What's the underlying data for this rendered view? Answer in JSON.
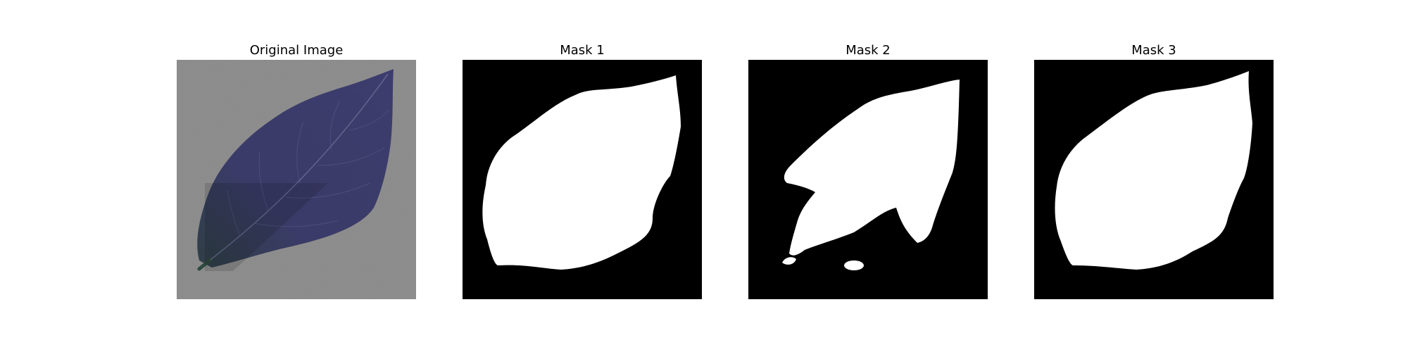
{
  "figure": {
    "panels": [
      {
        "id": "original",
        "title": "Original Image",
        "kind": "photo"
      },
      {
        "id": "mask1",
        "title": "Mask 1",
        "kind": "binary-mask"
      },
      {
        "id": "mask2",
        "title": "Mask 2",
        "kind": "binary-mask"
      },
      {
        "id": "mask3",
        "title": "Mask 3",
        "kind": "binary-mask"
      }
    ],
    "colors": {
      "background": "#ffffff",
      "mask_background": "#000000",
      "mask_foreground": "#ffffff",
      "photo_background": "#8a8a8a",
      "leaf": "#3a3a66"
    }
  }
}
